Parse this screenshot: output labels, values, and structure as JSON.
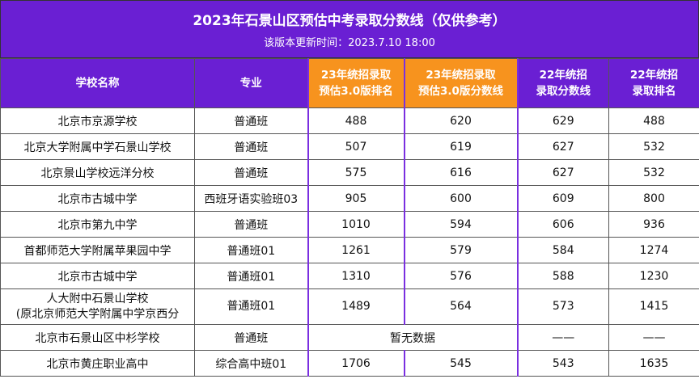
{
  "header": {
    "title": "2023年石景山区预估中考录取分数线（仅供参考）",
    "subtitle": "该版本更新时间：2023.7.10 18:00"
  },
  "table": {
    "columns": [
      [
        "学校名称"
      ],
      [
        "专业"
      ],
      [
        "23年统招录取",
        "预估3.0版排名"
      ],
      [
        "23年统招录取",
        "预估3.0版分数线"
      ],
      [
        "22年统招",
        "录取分数线"
      ],
      [
        "22年统招",
        "录取排名"
      ]
    ],
    "rows": [
      [
        [
          "北京市京源学校"
        ],
        "普通班",
        488,
        620,
        629,
        488
      ],
      [
        [
          "北京大学附属中学石景山学校"
        ],
        "普通班",
        507,
        619,
        627,
        532
      ],
      [
        [
          "北京景山学校远洋分校"
        ],
        "普通班",
        575,
        616,
        627,
        532
      ],
      [
        [
          "北京市古城中学"
        ],
        "西班牙语实验班03",
        905,
        600,
        609,
        800
      ],
      [
        [
          "北京市第九中学"
        ],
        "普通班",
        1010,
        594,
        606,
        936
      ],
      [
        [
          "首都师范大学附属苹果园中学"
        ],
        "普通班01",
        1261,
        579,
        584,
        1274
      ],
      [
        [
          "北京市古城中学"
        ],
        "普通班01",
        1310,
        576,
        588,
        1230
      ],
      [
        [
          "人大附中石景山学校",
          "(原北京师范大学附属中学京西分"
        ],
        "普通班01",
        1489,
        564,
        573,
        1415
      ],
      [
        [
          "北京市石景山区中杉学校"
        ],
        "普通班",
        "暂无数据",
        "——",
        "——"
      ],
      [
        [
          "北京市黄庄职业高中"
        ],
        "综合高中班01",
        1706,
        545,
        543,
        1635
      ]
    ]
  }
}
